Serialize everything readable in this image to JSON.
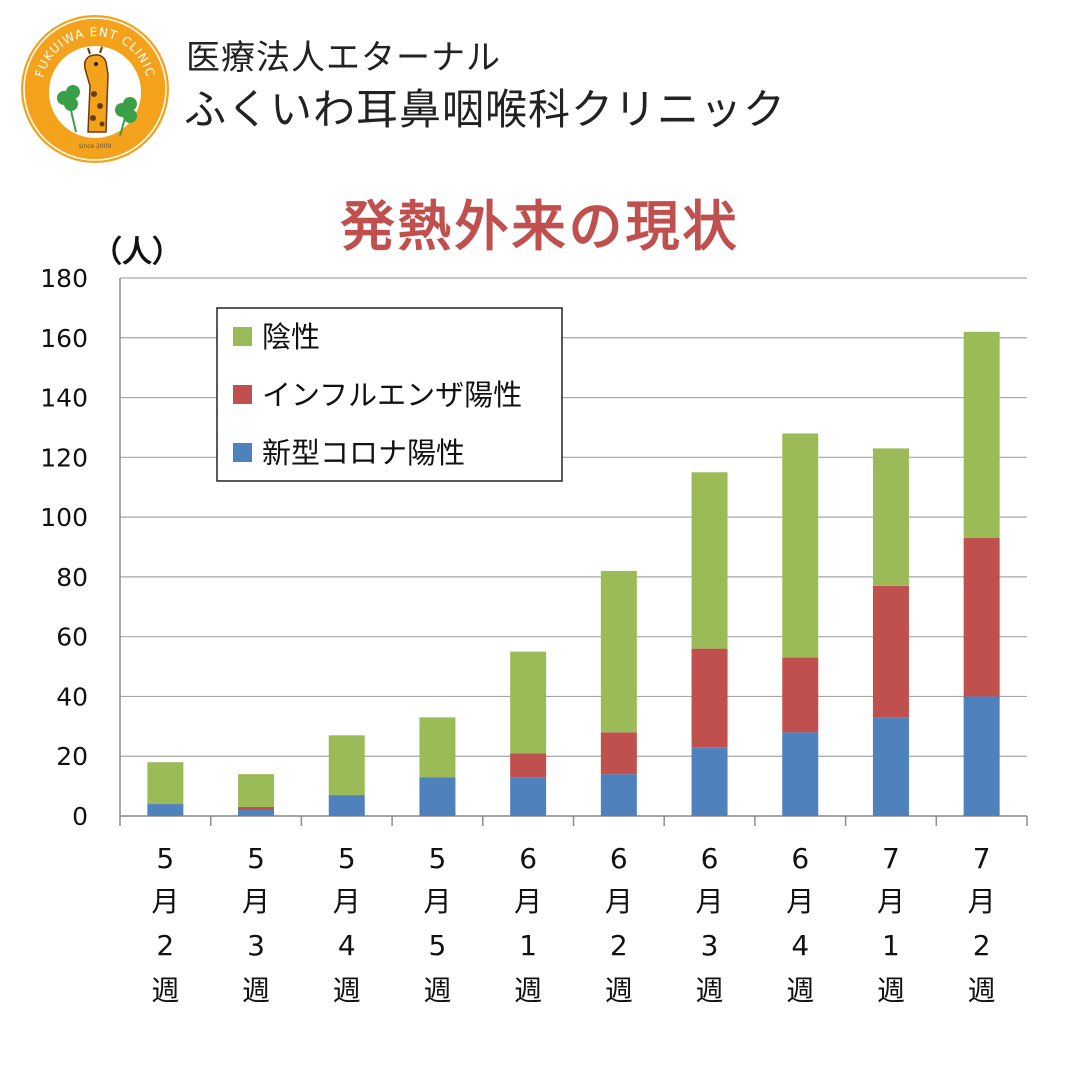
{
  "header": {
    "logo_text": "FUKUIWA ENT CLINIC",
    "logo_since": "since 2009",
    "subtitle": "医療法人エターナル",
    "clinic_name": "ふくいわ耳鼻咽喉科クリニック"
  },
  "colors": {
    "title": "#c0504d",
    "negative": "#9bbb59",
    "influenza": "#c0504d",
    "covid": "#4f81bd",
    "logo_orange": "#f4a21c"
  },
  "chart_data": {
    "type": "bar",
    "stacked": true,
    "title": "発熱外来の現状",
    "ylabel": "（人）",
    "ylim": [
      0,
      180
    ],
    "yticks": [
      0,
      20,
      40,
      60,
      80,
      100,
      120,
      140,
      160,
      180
    ],
    "grid": true,
    "legend_position": "top-left",
    "categories": [
      [
        "5",
        "月",
        "2",
        "週"
      ],
      [
        "5",
        "月",
        "3",
        "週"
      ],
      [
        "5",
        "月",
        "4",
        "週"
      ],
      [
        "5",
        "月",
        "5",
        "週"
      ],
      [
        "6",
        "月",
        "1",
        "週"
      ],
      [
        "6",
        "月",
        "2",
        "週"
      ],
      [
        "6",
        "月",
        "3",
        "週"
      ],
      [
        "6",
        "月",
        "4",
        "週"
      ],
      [
        "7",
        "月",
        "1",
        "週"
      ],
      [
        "7",
        "月",
        "2",
        "週"
      ]
    ],
    "series": [
      {
        "name": "新型コロナ陽性",
        "color": "#4f81bd",
        "values": [
          4,
          2,
          7,
          13,
          13,
          14,
          23,
          28,
          33,
          40
        ]
      },
      {
        "name": "インフルエンザ陽性",
        "color": "#c0504d",
        "values": [
          0,
          1,
          0,
          0,
          8,
          14,
          33,
          25,
          44,
          53
        ]
      },
      {
        "name": "陰性",
        "color": "#9bbb59",
        "values": [
          14,
          11,
          20,
          20,
          34,
          54,
          59,
          75,
          46,
          69
        ]
      }
    ],
    "legend_order": [
      "陰性",
      "インフルエンザ陽性",
      "新型コロナ陽性"
    ]
  }
}
